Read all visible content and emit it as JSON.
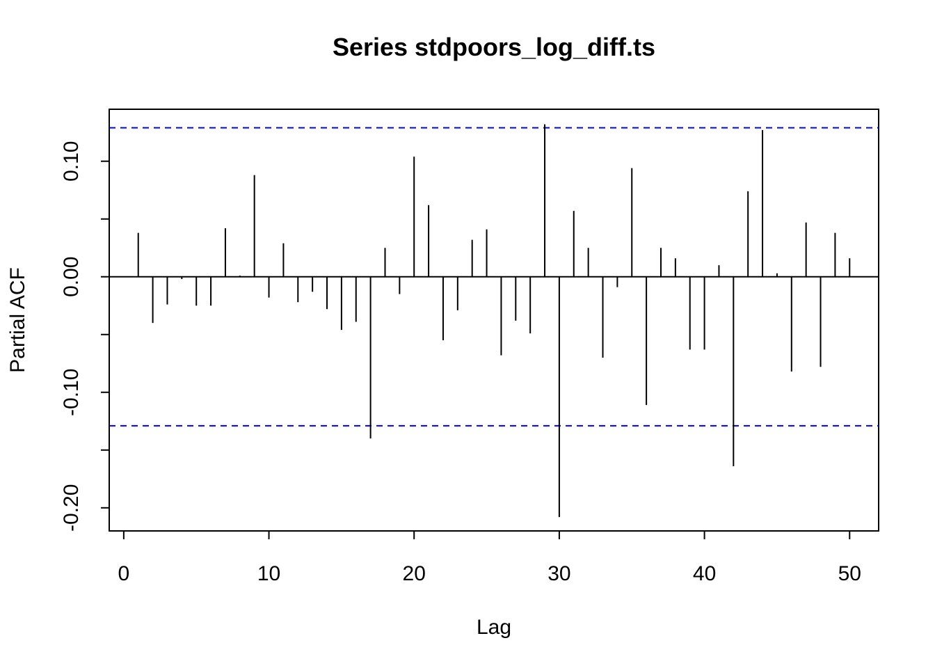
{
  "chart_data": {
    "type": "bar",
    "title": "Series  stdpoors_log_diff.ts",
    "xlabel": "Lag",
    "ylabel": "Partial ACF",
    "xlim": [
      -1,
      52
    ],
    "ylim": [
      -0.22,
      0.145
    ],
    "x_ticks": [
      0,
      10,
      20,
      30,
      40,
      50
    ],
    "x_tick_labels": [
      "0",
      "10",
      "20",
      "30",
      "40",
      "50"
    ],
    "y_ticks": [
      -0.2,
      -0.15,
      -0.1,
      -0.05,
      0.0,
      0.05,
      0.1
    ],
    "y_tick_labels": [
      "-0.20",
      "",
      "-0.10",
      "",
      "0.00",
      "",
      "0.10"
    ],
    "confidence_bound": 0.129,
    "bound_color": "#0000ff",
    "bar_color": "#000000",
    "grid": false,
    "x": [
      1,
      2,
      3,
      4,
      5,
      6,
      7,
      8,
      9,
      10,
      11,
      12,
      13,
      14,
      15,
      16,
      17,
      18,
      19,
      20,
      21,
      22,
      23,
      24,
      25,
      26,
      27,
      28,
      29,
      30,
      31,
      32,
      33,
      34,
      35,
      36,
      37,
      38,
      39,
      40,
      41,
      42,
      43,
      44,
      45,
      46,
      47,
      48,
      49,
      50
    ],
    "values": [
      0.038,
      -0.04,
      -0.024,
      -0.002,
      -0.025,
      -0.025,
      0.042,
      0.001,
      0.088,
      -0.018,
      0.029,
      -0.022,
      -0.013,
      -0.028,
      -0.046,
      -0.039,
      -0.14,
      0.025,
      -0.015,
      0.104,
      0.062,
      -0.055,
      -0.029,
      0.032,
      0.041,
      -0.068,
      -0.038,
      -0.049,
      0.132,
      -0.208,
      0.057,
      0.025,
      -0.07,
      -0.009,
      0.094,
      -0.111,
      0.025,
      0.016,
      -0.063,
      -0.063,
      0.01,
      -0.164,
      0.074,
      0.127,
      0.003,
      -0.082,
      0.047,
      -0.078,
      0.038,
      0.016
    ]
  }
}
